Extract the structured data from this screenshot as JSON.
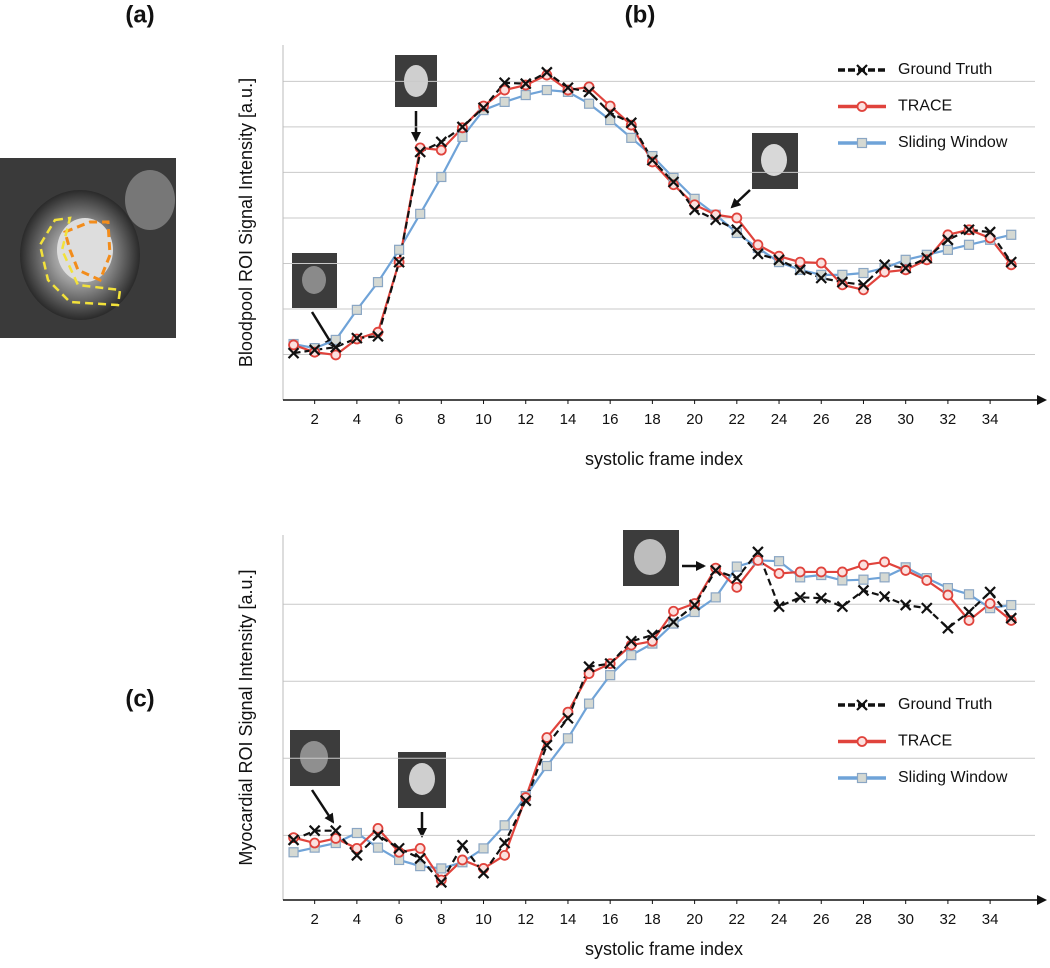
{
  "panels": {
    "a": "(a)",
    "b": "(b)",
    "c": "(c)"
  },
  "chart_data": [
    {
      "type": "line",
      "y_label": "Bloodpool ROI Signal Intensity  [a.u.]",
      "x_label": "systolic frame index",
      "x": [
        1,
        2,
        3,
        4,
        5,
        6,
        7,
        8,
        9,
        10,
        11,
        12,
        13,
        14,
        15,
        16,
        17,
        18,
        19,
        20,
        21,
        22,
        23,
        24,
        25,
        26,
        27,
        28,
        29,
        30,
        31,
        32,
        33,
        34,
        35
      ],
      "xticks": [
        2,
        4,
        6,
        8,
        10,
        12,
        14,
        16,
        18,
        20,
        22,
        24,
        26,
        28,
        30,
        32,
        34
      ],
      "xlim": [
        0.5,
        36.6
      ],
      "ylim": [
        0,
        7.8
      ],
      "gridlines": [
        1,
        2,
        3,
        4,
        5,
        6,
        7
      ],
      "legend": "upper right",
      "series": [
        {
          "name": "Ground Truth",
          "color": "#111111",
          "values": [
            1.03,
            1.1,
            1.16,
            1.36,
            1.4,
            3.03,
            5.45,
            5.67,
            6.0,
            6.42,
            6.97,
            6.95,
            7.2,
            6.86,
            6.77,
            6.31,
            6.09,
            5.27,
            4.79,
            4.18,
            3.96,
            3.74,
            3.21,
            3.08,
            2.86,
            2.68,
            2.59,
            2.53,
            2.97,
            2.9,
            3.12,
            3.52,
            3.74,
            3.69,
            3.03
          ]
        },
        {
          "name": "TRACE",
          "color": "#e0433c",
          "values": [
            1.21,
            1.05,
            0.99,
            1.34,
            1.49,
            3.03,
            5.54,
            5.49,
            5.98,
            6.46,
            6.81,
            6.92,
            7.14,
            6.81,
            6.88,
            6.46,
            6.04,
            5.23,
            4.73,
            4.29,
            4.07,
            4.0,
            3.41,
            3.16,
            3.03,
            3.01,
            2.53,
            2.42,
            2.81,
            2.86,
            3.08,
            3.63,
            3.74,
            3.56,
            2.97
          ]
        },
        {
          "name": "Sliding Window",
          "color": "#6fa3d8",
          "values": [
            1.23,
            1.14,
            1.32,
            1.98,
            2.59,
            3.3,
            4.09,
            4.9,
            5.78,
            6.37,
            6.55,
            6.7,
            6.81,
            6.77,
            6.51,
            6.15,
            5.76,
            5.36,
            4.88,
            4.42,
            4.07,
            3.67,
            3.34,
            3.03,
            2.86,
            2.75,
            2.75,
            2.79,
            2.9,
            3.08,
            3.19,
            3.3,
            3.41,
            3.52,
            3.63
          ]
        }
      ]
    },
    {
      "type": "line",
      "y_label": "Myocardial ROI Signal Intensity  [a.u.]",
      "x_label": "systolic frame index",
      "x": [
        1,
        2,
        3,
        4,
        5,
        6,
        7,
        8,
        9,
        10,
        11,
        12,
        13,
        14,
        15,
        16,
        17,
        18,
        19,
        20,
        21,
        22,
        23,
        24,
        25,
        26,
        27,
        28,
        29,
        30,
        31,
        32,
        33,
        34,
        35
      ],
      "xticks": [
        2,
        4,
        6,
        8,
        10,
        12,
        14,
        16,
        18,
        20,
        22,
        24,
        26,
        28,
        30,
        32,
        34
      ],
      "xlim": [
        0.5,
        36.6
      ],
      "ylim": [
        0.16,
        4.9
      ],
      "gridlines": [
        1,
        2,
        3,
        4
      ],
      "legend": "center right",
      "series": [
        {
          "name": "Ground Truth",
          "color": "#111111",
          "values": [
            0.94,
            1.06,
            1.06,
            0.74,
            1.0,
            0.83,
            0.7,
            0.39,
            0.87,
            0.51,
            0.9,
            1.45,
            2.17,
            2.52,
            3.19,
            3.23,
            3.52,
            3.6,
            3.77,
            3.99,
            4.44,
            4.34,
            4.68,
            3.97,
            4.09,
            4.08,
            3.97,
            4.18,
            4.1,
            3.99,
            3.95,
            3.69,
            3.9,
            4.16,
            3.82
          ]
        },
        {
          "name": "TRACE",
          "color": "#e0433c",
          "values": [
            0.97,
            0.9,
            0.96,
            0.83,
            1.09,
            0.78,
            0.83,
            0.42,
            0.68,
            0.57,
            0.74,
            1.49,
            2.27,
            2.6,
            3.1,
            3.23,
            3.47,
            3.52,
            3.91,
            4.01,
            4.47,
            4.22,
            4.57,
            4.4,
            4.42,
            4.42,
            4.42,
            4.51,
            4.55,
            4.44,
            4.31,
            4.12,
            3.79,
            4.01,
            3.79
          ]
        },
        {
          "name": "Sliding Window",
          "color": "#6fa3d8",
          "values": [
            0.78,
            0.84,
            0.9,
            1.03,
            0.84,
            0.68,
            0.6,
            0.57,
            0.65,
            0.83,
            1.13,
            1.51,
            1.9,
            2.26,
            2.71,
            3.08,
            3.34,
            3.49,
            3.75,
            3.9,
            4.09,
            4.49,
            4.57,
            4.56,
            4.35,
            4.38,
            4.31,
            4.32,
            4.35,
            4.48,
            4.34,
            4.21,
            4.13,
            3.95,
            3.99
          ]
        }
      ]
    }
  ]
}
